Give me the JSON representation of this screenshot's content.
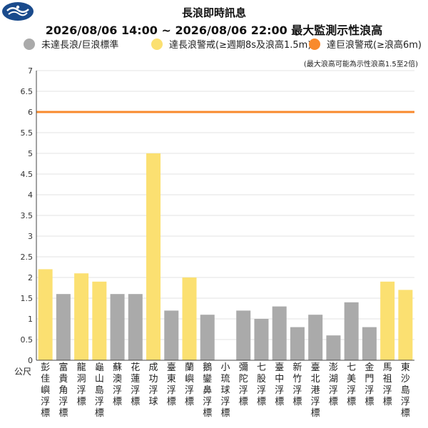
{
  "header": {
    "title": "長浪即時訊息",
    "subtitle": "2026/08/06 14:00 ~ 2026/08/06 22:00 最大監測示性浪高"
  },
  "legend": [
    {
      "label": "未達長浪/巨浪標準",
      "color": "#aaaaaa"
    },
    {
      "label": "達長浪警戒(≥週期8s及浪高1.5m)",
      "color": "#fbe071"
    },
    {
      "label": "達巨浪警戒(≥浪高6m)",
      "color": "#f98a2c"
    }
  ],
  "note": "(最大浪高可能為示性浪高1.5至2倍)",
  "chart_data": {
    "type": "bar",
    "title": "2026/08/06 14:00 ~ 2026/08/06 22:00 最大監測示性浪高",
    "ylabel": "公尺",
    "ylim": [
      0,
      7
    ],
    "yticks": [
      "0",
      "0.5",
      "1",
      "1.5",
      "2",
      "2.5",
      "3",
      "3.5",
      "4",
      "4.5",
      "5",
      "5.5",
      "6",
      "6.5",
      "7"
    ],
    "grid": true,
    "threshold": {
      "value": 6,
      "color": "#f98a2c"
    },
    "categories": [
      "彭佳嶼浮標",
      "富貴角浮標",
      "龍洞浮標",
      "龜山島浮標",
      "蘇澳浮標",
      "花蓮浮標",
      "成功浮球",
      "臺東浮標",
      "蘭嶼浮標",
      "鵝鑾鼻浮標",
      "小琉球浮標",
      "彌陀浮標",
      "七股浮標",
      "臺中浮標",
      "新竹浮標",
      "臺北港浮標",
      "澎湖浮標",
      "七美浮標",
      "金門浮標",
      "馬祖浮標",
      "東沙島浮標"
    ],
    "values": [
      2.2,
      1.6,
      2.1,
      1.9,
      1.6,
      1.6,
      5.0,
      1.2,
      2.0,
      1.1,
      null,
      1.2,
      1.0,
      1.3,
      0.8,
      1.1,
      0.6,
      1.4,
      0.8,
      1.9,
      1.7
    ],
    "colors": [
      "#fbe071",
      "#aaaaaa",
      "#fbe071",
      "#fbe071",
      "#aaaaaa",
      "#aaaaaa",
      "#fbe071",
      "#aaaaaa",
      "#fbe071",
      "#aaaaaa",
      "#aaaaaa",
      "#aaaaaa",
      "#aaaaaa",
      "#aaaaaa",
      "#aaaaaa",
      "#aaaaaa",
      "#aaaaaa",
      "#aaaaaa",
      "#aaaaaa",
      "#fbe071",
      "#fbe071"
    ]
  }
}
